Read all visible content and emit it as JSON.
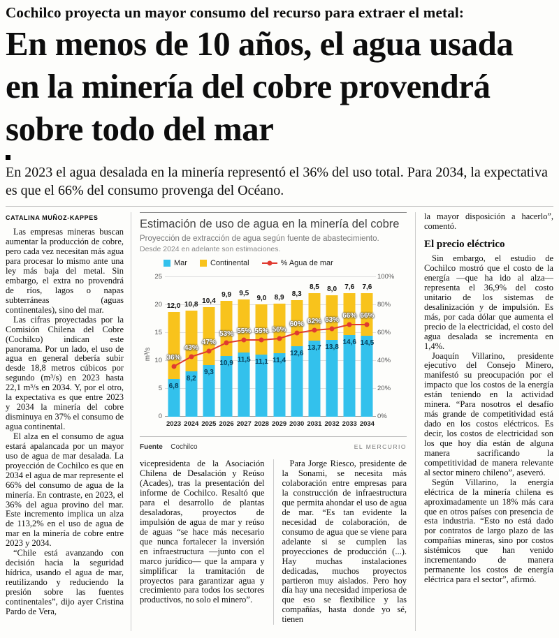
{
  "kicker": "Cochilco proyecta un mayor consumo del recurso para extraer el metal:",
  "headline": "En menos de 10 años, el agua usada en la minería del cobre provendrá sobre todo del mar",
  "deck": "En 2023 el agua desalada en la minería representó el 36% del uso total. Para 2034, la expectativa es que el 66% del consumo provenga del Océano.",
  "byline": "CATALINA MUÑOZ-KAPPES",
  "columns": {
    "left": [
      "Las empresas mineras buscan aumentar la producción de cobre, pero cada vez necesitan más agua para procesar lo mismo ante una ley más baja del metal. Sin embargo, el extra no provendrá de ríos, lagos o napas subterráneas (aguas continentales), sino del mar.",
      "Las cifras proyectadas por la Comisión Chilena del Cobre (Cochilco) indican este panorama. Por un lado, el uso de agua en general debería subir desde 18,8 metros cúbicos por segundo (m³/s) en 2023 hasta 22,1 m³/s en 2034. Y, por el otro, la expectativa es que entre 2023 y 2034 la minería del cobre disminuya en 37% el consumo de agua continental.",
      "El alza en el consumo de agua estará apalancada por un mayor uso de agua de mar desalada. La proyección de Cochilco es que en 2034 el agua de mar represente el 66% del consumo de agua de la minería. En contraste, en 2023, el 36% del agua provino del mar. Este incremento implica un alza de 113,2% en el uso de agua de mar en la minería de cobre entre 2023 y 2034.",
      "“Chile está avanzando con decisión hacia la seguridad hídrica, usando el agua de mar, reutilizando y reduciendo la presión sobre las fuentes continentales”, dijo ayer Cristina Pardo de Vera,"
    ],
    "mid_left": [
      "vicepresidenta de la Asociación Chilena de Desalación y Reúso (Acades), tras la presentación del informe de Cochilco. Resaltó que para el desarrollo de plantas desaladoras, proyectos de impulsión de agua de mar y reúso de aguas “se hace más necesario que nunca fortalecer la inversión en infraestructura —junto con el marco jurídico— que la ampara y simplificar la tramitación de proyectos para garantizar agua y crecimiento para todos los sectores productivos, no solo el minero”."
    ],
    "mid_right": [
      "Para Jorge Riesco, presidente de la Sonami, se necesita más colaboración entre empresas para la construcción de infraestructura que permita ahondar el uso de agua de mar. “Es tan evidente la necesidad de colaboración, de consumo de agua que se viene para adelante si se cumplen las proyecciones de producción (...). Hay muchas instalaciones dedicadas, muchos proyectos partieron muy aislados. Pero hoy día hay una necesidad imperiosa de que eso se flexibilice y las compañías, hasta donde yo sé, tienen"
    ],
    "right_lead": [
      "la mayor disposición a hacerlo”, comentó."
    ],
    "right_subhead": "El precio eléctrico",
    "right": [
      "Sin embargo, el estudio de Cochilco mostró que el costo de la energía —que ha ido al alza— representa el 36,9% del costo unitario de los sistemas de desalinización y de impulsión. Es más, por cada dólar que aumenta el precio de la electricidad, el costo del agua desalada se incrementa en 1,4%.",
      "Joaquín Villarino, presidente ejecutivo del Consejo Minero, manifestó su preocupación por el impacto que los costos de la energía están teniendo en la actividad minera. “Para nosotros el desafío más grande de competitividad está dado en los costos eléctricos. Es decir, los costos de electricidad son los que hoy día están de alguna manera sacrificando la competitividad de manera relevante al sector minero chileno”, aseveró.",
      "Según Villarino, la energía eléctrica de la minería chilena es aproximadamente un 18% más cara que en otros países con presencia de esta industria. “Esto no está dado por contratos de largo plazo de las compañías mineras, sino por costos sistémicos que han venido incrementando de manera permanente los costos de energía eléctrica para el sector”, afirmó."
    ]
  },
  "chart": {
    "title": "Estimación de uso de agua en la minería del cobre",
    "subtitle": "Proyección de extracción de agua según fuente de abastecimiento.",
    "note": "Desde 2024 en adelante son estimaciones.",
    "ylabel": "m³/s",
    "source_label": "Fuente",
    "source": "Cochilco",
    "credit": "EL MERCURIO"
  },
  "chart_data": {
    "type": "bar",
    "subtype": "stacked-with-line",
    "categories": [
      2023,
      2024,
      2025,
      2026,
      2027,
      2028,
      2029,
      2030,
      2031,
      2032,
      2033,
      2034
    ],
    "series": [
      {
        "name": "Mar",
        "color": "#33c1ec",
        "values": [
          6.8,
          8.2,
          9.3,
          10.9,
          11.5,
          11.1,
          11.4,
          12.6,
          13.7,
          13.8,
          14.6,
          14.5
        ]
      },
      {
        "name": "Continental",
        "color": "#f8c31c",
        "values": [
          12.0,
          10.8,
          10.4,
          9.9,
          9.5,
          9.0,
          8.9,
          8.3,
          8.5,
          8.0,
          7.6,
          7.6
        ]
      }
    ],
    "line": {
      "name": "% Agua de mar",
      "color": "#e03a30",
      "values": [
        36,
        43,
        47,
        53,
        55,
        55,
        56,
        60,
        62,
        63,
        66,
        66
      ]
    },
    "ylim": [
      0,
      25
    ],
    "yticks": [
      0,
      5,
      10,
      15,
      20,
      25
    ],
    "y2lim": [
      0,
      100
    ],
    "y2ticks": [
      "0%",
      "20%",
      "40%",
      "60%",
      "80%",
      "100%"
    ],
    "grid": true,
    "legend_position": "top-left"
  }
}
